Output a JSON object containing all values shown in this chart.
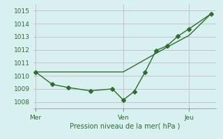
{
  "title": "",
  "xlabel": "Pression niveau de la mer( hPa )",
  "bg_color": "#d8f0f0",
  "grid_color": "#c0b0c0",
  "line_color": "#2d6e2d",
  "ylim": [
    1007.5,
    1015.5
  ],
  "yticks": [
    1008,
    1009,
    1010,
    1011,
    1012,
    1013,
    1014,
    1015
  ],
  "xtick_labels": [
    "Mer",
    "Ven",
    "Jeu"
  ],
  "xtick_positions": [
    0,
    8,
    14
  ],
  "smooth_line_x": [
    0,
    8,
    12,
    14,
    16
  ],
  "smooth_line_y": [
    1010.3,
    1010.3,
    1012.2,
    1013.1,
    1014.75
  ],
  "jagged_x": [
    0,
    1.5,
    3,
    5,
    7,
    8,
    9,
    10,
    11,
    12,
    13,
    14,
    16
  ],
  "jagged_y": [
    1010.3,
    1009.35,
    1009.1,
    1008.85,
    1009.0,
    1008.15,
    1008.8,
    1010.3,
    1011.95,
    1012.3,
    1013.05,
    1013.6,
    1014.75
  ],
  "marker": "D",
  "markersize": 3,
  "linewidth": 1.0
}
